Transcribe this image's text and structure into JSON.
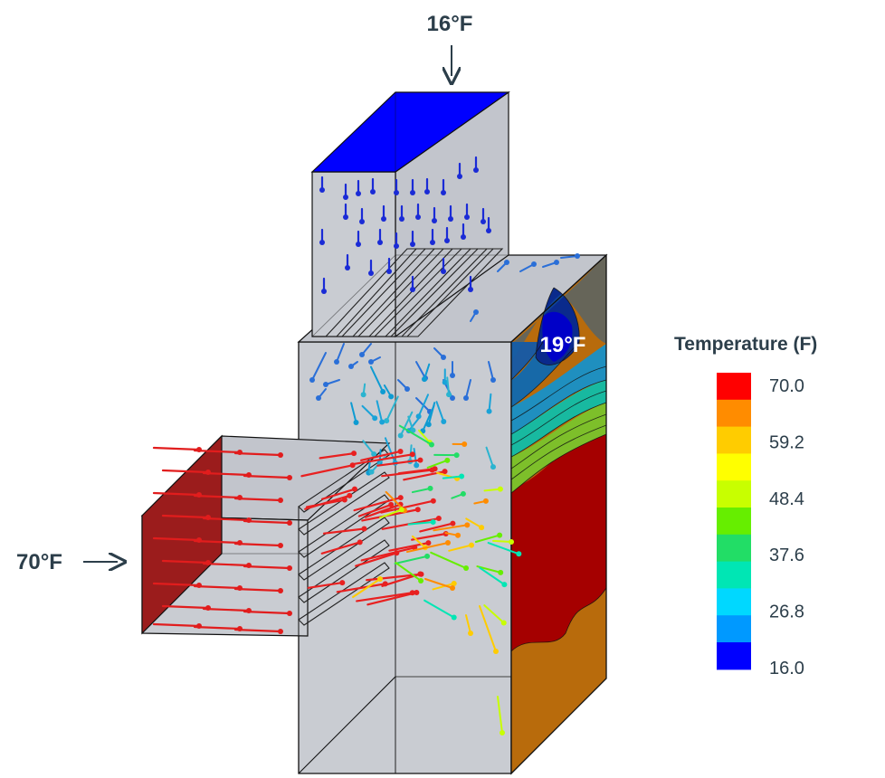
{
  "labels": {
    "top_inlet": "16°F",
    "side_inlet": "70°F",
    "probe": "19°F"
  },
  "legend": {
    "title": "Temperature (F)",
    "ticks": [
      "70.0",
      "59.2",
      "48.4",
      "37.6",
      "26.8",
      "16.0"
    ],
    "colors": [
      "#ff0000",
      "#ff8c00",
      "#ffcc00",
      "#ffff00",
      "#c8ff00",
      "#66ee00",
      "#22dd66",
      "#00e6b4",
      "#00d8ff",
      "#0099ff",
      "#0000ff"
    ]
  },
  "colors": {
    "box_face": "#c9ccd2",
    "box_face_dark": "#bfc2c8",
    "cold_inlet_face": "#0000ff",
    "hot_inlet_face": "#9b1c1c",
    "text": "#2c3e4a"
  }
}
